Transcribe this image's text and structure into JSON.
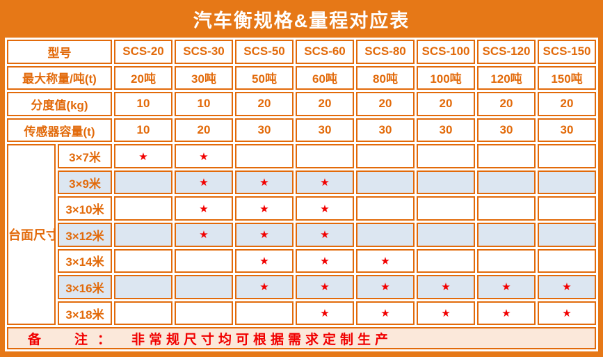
{
  "title": "汽车衡规格&量程对应表",
  "colors": {
    "frame_orange": "#E67817",
    "border_orange": "#E26A0A",
    "text_orange": "#E26A0A",
    "stripe_blue": "#DCE6F1",
    "note_bg": "#FBE8DA",
    "star_red": "#F10000",
    "title_text": "#FFFFFF"
  },
  "table": {
    "model_row": {
      "label": "型号",
      "columns": [
        "SCS-20",
        "SCS-30",
        "SCS-50",
        "SCS-60",
        "SCS-80",
        "SCS-100",
        "SCS-120",
        "SCS-150"
      ]
    },
    "spec_rows": [
      {
        "label": "最大称量/吨(t)",
        "values": [
          "20吨",
          "30吨",
          "50吨",
          "60吨",
          "80吨",
          "100吨",
          "120吨",
          "150吨"
        ]
      },
      {
        "label": "分度值(kg)",
        "values": [
          "10",
          "10",
          "20",
          "20",
          "20",
          "20",
          "20",
          "20"
        ]
      },
      {
        "label": "传感器容量(t)",
        "values": [
          "10",
          "20",
          "30",
          "30",
          "30",
          "30",
          "30",
          "30"
        ]
      }
    ],
    "platform": {
      "label": "台面尺寸",
      "star_glyph": "★",
      "rows": [
        {
          "size": "3×7米",
          "stars": [
            1,
            1,
            0,
            0,
            0,
            0,
            0,
            0
          ]
        },
        {
          "size": "3×9米",
          "stars": [
            0,
            1,
            1,
            1,
            0,
            0,
            0,
            0
          ]
        },
        {
          "size": "3×10米",
          "stars": [
            0,
            1,
            1,
            1,
            0,
            0,
            0,
            0
          ]
        },
        {
          "size": "3×12米",
          "stars": [
            0,
            1,
            1,
            1,
            0,
            0,
            0,
            0
          ]
        },
        {
          "size": "3×14米",
          "stars": [
            0,
            0,
            1,
            1,
            1,
            0,
            0,
            0
          ]
        },
        {
          "size": "3×16米",
          "stars": [
            0,
            0,
            1,
            1,
            1,
            1,
            1,
            1
          ]
        },
        {
          "size": "3×18米",
          "stars": [
            0,
            0,
            0,
            1,
            1,
            1,
            1,
            1
          ]
        }
      ]
    },
    "note": {
      "label_left": "备",
      "label_right": "注",
      "colon": "：",
      "text": "非常规尺寸均可根据需求定制生产"
    }
  }
}
